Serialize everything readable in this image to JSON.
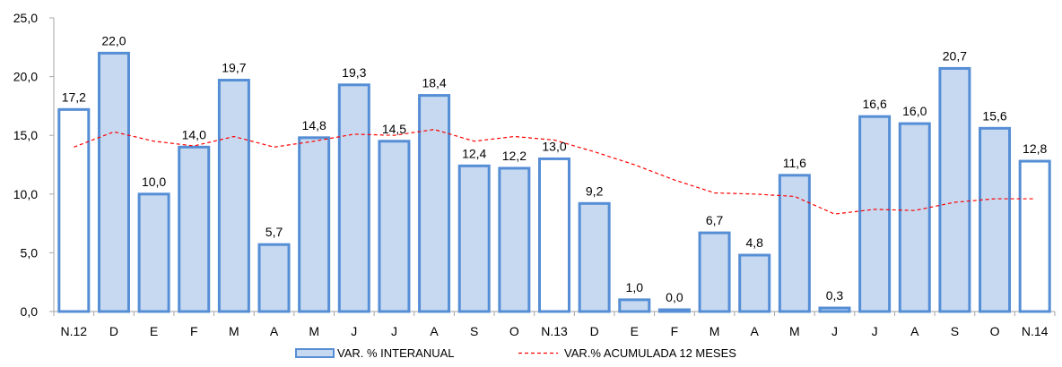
{
  "chart_data": {
    "type": "bar",
    "categories": [
      "N.12",
      "D",
      "E",
      "F",
      "M",
      "A",
      "M",
      "J",
      "J",
      "A",
      "S",
      "O",
      "N.13",
      "D",
      "E",
      "F",
      "M",
      "A",
      "M",
      "J",
      "J",
      "A",
      "S",
      "O",
      "N.14"
    ],
    "series": [
      {
        "name": "VAR. % INTERANUAL",
        "type": "bar",
        "values": [
          17.2,
          22.0,
          10.0,
          14.0,
          19.7,
          5.7,
          14.8,
          19.3,
          14.5,
          18.4,
          12.4,
          12.2,
          13.0,
          9.2,
          1.0,
          0.0,
          6.7,
          4.8,
          11.6,
          0.3,
          16.6,
          16.0,
          20.7,
          15.6,
          12.8
        ],
        "value_labels": [
          "17,2",
          "22,0",
          "10,0",
          "14,0",
          "19,7",
          "5,7",
          "14,8",
          "19,3",
          "14,5",
          "18,4",
          "12,4",
          "12,2",
          "13,0",
          "9,2",
          "1,0",
          "0,0",
          "6,7",
          "4,8",
          "11,6",
          "0,3",
          "16,6",
          "16,0",
          "20,7",
          "15,6",
          "12,8"
        ],
        "hollow_indices": [
          0,
          12,
          24
        ]
      },
      {
        "name": "VAR.% ACUMULADA 12 MESES",
        "type": "line",
        "style": "dashed",
        "values": [
          14.0,
          15.3,
          14.5,
          14.1,
          14.9,
          14.0,
          14.5,
          15.1,
          15.0,
          15.5,
          14.5,
          14.9,
          14.6,
          13.6,
          12.5,
          11.2,
          10.1,
          10.0,
          9.8,
          8.3,
          8.7,
          8.6,
          9.3,
          9.6,
          9.6
        ]
      }
    ],
    "y_ticks": [
      "0,0",
      "5,0",
      "10,0",
      "15,0",
      "20,0",
      "25,0"
    ],
    "ylim": [
      0,
      25
    ],
    "legend_position": "bottom",
    "grid": false,
    "colors": {
      "bar_fill": "#c6d9f1",
      "bar_stroke": "#558ed5",
      "hollow_fill": "#ffffff",
      "line": "#ff0000",
      "axis": "#a6a6a6"
    }
  }
}
